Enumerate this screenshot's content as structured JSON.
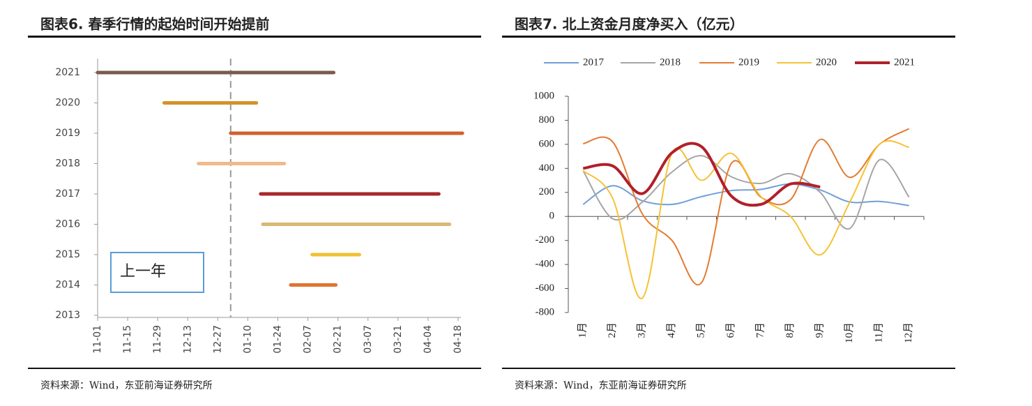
{
  "chart_data": [
    {
      "type": "range-bar",
      "title": "图表6.  春季行情的起始时间开始提前",
      "source": "资料来源：Wind，东亚前海证券研究所",
      "categories": [
        "2013",
        "2014",
        "2015",
        "2016",
        "2017",
        "2018",
        "2019",
        "2020",
        "2021"
      ],
      "ranges": [
        null,
        [
          "01-30",
          "02-20"
        ],
        [
          "02-09",
          "03-03"
        ],
        [
          "01-17",
          "04-14"
        ],
        [
          "01-16",
          "04-09"
        ],
        [
          "12-18",
          "01-27"
        ],
        [
          "01-02",
          "04-20"
        ],
        [
          "12-02",
          "01-14"
        ],
        [
          "11-01",
          "02-19"
        ]
      ],
      "colors": [
        null,
        "#e0742e",
        "#f0c233",
        "#d9b775",
        "#a8282c",
        "#f2b98a",
        "#d0612b",
        "#d4922a",
        "#7b5a4f"
      ],
      "xlim": [
        "11-01",
        "04-18"
      ],
      "xticks": [
        "11-01",
        "11-15",
        "11-29",
        "12-13",
        "12-27",
        "01-10",
        "01-24",
        "02-07",
        "02-21",
        "03-07",
        "03-21",
        "04-04",
        "04-18"
      ],
      "vline": "01-02",
      "annotation": "上一年"
    },
    {
      "type": "line",
      "title": "图表7.  北上资金月度净买入（亿元）",
      "source": "资料来源：Wind，东亚前海证券研究所",
      "categories": [
        "1月",
        "2月",
        "3月",
        "4月",
        "5月",
        "6月",
        "7月",
        "8月",
        "9月",
        "10月",
        "11月",
        "12月"
      ],
      "series": [
        {
          "name": "2017",
          "color": "#6f9fd8",
          "values": [
            100,
            255,
            130,
            100,
            165,
            215,
            225,
            270,
            220,
            120,
            125,
            90
          ]
        },
        {
          "name": "2018",
          "color": "#a5a5a5",
          "values": [
            380,
            -20,
            120,
            370,
            505,
            330,
            275,
            355,
            200,
            -100,
            470,
            160
          ]
        },
        {
          "name": "2019",
          "color": "#e37b32",
          "values": [
            605,
            620,
            20,
            -200,
            -550,
            440,
            160,
            140,
            640,
            325,
            600,
            730
          ]
        },
        {
          "name": "2020",
          "color": "#f5c234",
          "values": [
            380,
            150,
            -680,
            530,
            300,
            525,
            165,
            0,
            -320,
            120,
            600,
            575
          ]
        },
        {
          "name": "2021",
          "color": "#b0202a",
          "values": [
            400,
            420,
            190,
            530,
            580,
            170,
            100,
            270,
            245,
            null,
            null,
            null
          ]
        }
      ],
      "ylim": [
        -800,
        1000
      ],
      "yticks": [
        -800,
        -600,
        -400,
        -200,
        0,
        200,
        400,
        600,
        800,
        1000
      ],
      "legend": "top"
    }
  ]
}
